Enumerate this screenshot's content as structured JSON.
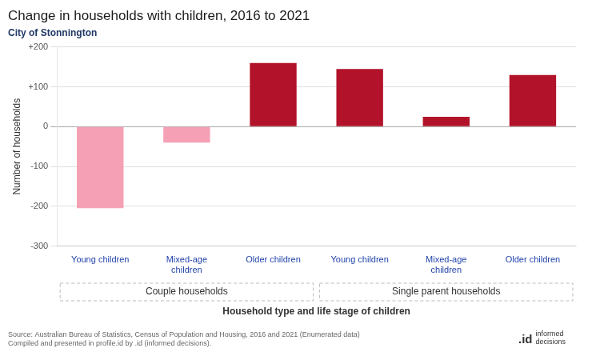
{
  "chart_data": {
    "type": "bar",
    "title": "Change in households with children, 2016 to 2021",
    "subtitle": "City of Stonnington",
    "categories": [
      "Young children",
      "Mixed-age\nchildren",
      "Older children",
      "Young children",
      "Mixed-age\nchildren",
      "Older children"
    ],
    "values": [
      -205,
      -40,
      160,
      145,
      25,
      130
    ],
    "colors": [
      "#f5a0b5",
      "#f5a0b5",
      "#b2132a",
      "#b2132a",
      "#b2132a",
      "#b2132a"
    ],
    "group_labels": [
      "Couple households",
      "Single parent households"
    ],
    "xlabel": "Household type and life stage of children",
    "ylabel": "Number of households",
    "ylim": [
      -300,
      200
    ],
    "yticks": [
      -300,
      -200,
      -100,
      0,
      {
        "value": 100,
        "label": "+100"
      },
      {
        "value": 200,
        "label": "+200"
      }
    ],
    "grid": true,
    "source": "Source: Australian Bureau of Statistics, Census of Population and Housing, 2016 and 2021 (Enumerated data)\nCompiled and presented in profile.id by .id (informed decisions).",
    "annotations": [
      ".id",
      "informed\ndecisions"
    ]
  }
}
